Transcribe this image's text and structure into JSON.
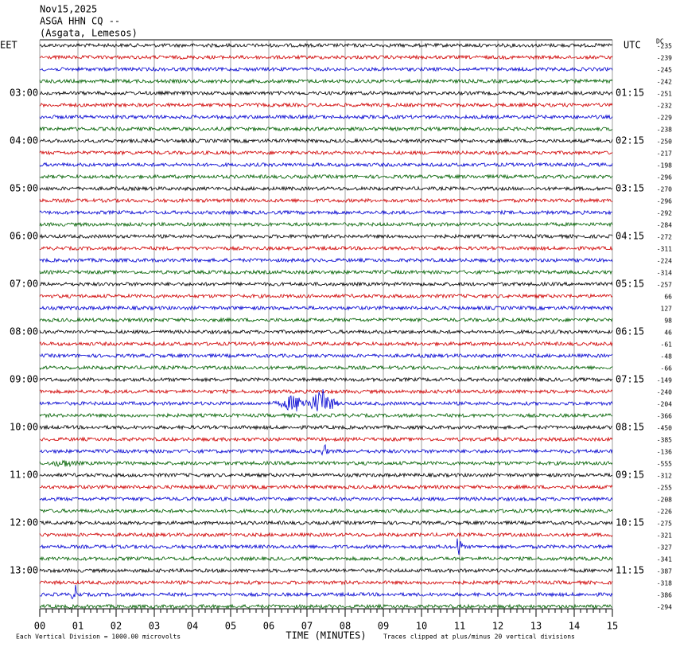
{
  "chart_data": {
    "type": "helicorder",
    "header": [
      "Nov15,2025",
      "ASGA HHN CQ --",
      "(Asgata, Lemesos)"
    ],
    "left_label": "EET",
    "right_label": "UTC",
    "offset_label": "DC",
    "left_hours": [
      "03:00",
      "04:00",
      "05:00",
      "06:00",
      "07:00",
      "08:00",
      "09:00",
      "10:00",
      "11:00",
      "12:00",
      "13:00"
    ],
    "right_hours": [
      "01:15",
      "02:15",
      "03:15",
      "04:15",
      "05:15",
      "06:15",
      "07:15",
      "08:15",
      "09:15",
      "10:15",
      "11:15"
    ],
    "offsets": [
      -235,
      -239,
      -245,
      -242,
      -251,
      -232,
      -229,
      -238,
      -250,
      -217,
      -198,
      -296,
      -270,
      -296,
      -292,
      -284,
      -272,
      -311,
      -224,
      -314,
      -257,
      66,
      127,
      98,
      46,
      -61,
      -48,
      -66,
      -149,
      -240,
      -204,
      -366,
      -450,
      -385,
      -136,
      -555,
      -312,
      -255,
      -208,
      -226,
      -275,
      -321,
      -327,
      -341,
      -387,
      -318,
      -386,
      -294
    ],
    "trace_colors": [
      "#000000",
      "#d00000",
      "#0000d0",
      "#006000"
    ],
    "xlim": [
      0,
      15
    ],
    "xticks": [
      {
        "value": 0,
        "label": "00"
      },
      {
        "value": 1,
        "label": "01"
      },
      {
        "value": 2,
        "label": "02"
      },
      {
        "value": 3,
        "label": "03"
      },
      {
        "value": 4,
        "label": "04"
      },
      {
        "value": 5,
        "label": "05"
      },
      {
        "value": 6,
        "label": "06"
      },
      {
        "value": 7,
        "label": "07"
      },
      {
        "value": 8,
        "label": "08"
      },
      {
        "value": 9,
        "label": "09"
      },
      10,
      11,
      12,
      13,
      14,
      15
    ],
    "grid": true,
    "xlabel": "TIME (MINUTES)",
    "scale_note": "Each Vertical Division = 1000.00 microvolts",
    "clip_note": "Traces clipped at plus/minus 20 vertical divisions"
  }
}
